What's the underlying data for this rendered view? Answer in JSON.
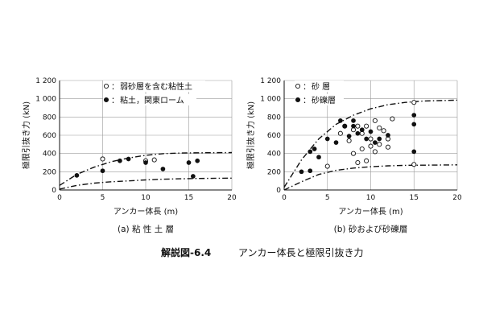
{
  "figure": {
    "caption_label": "解説図-6.4",
    "caption_text": "アンカー体長と極限引抜き力"
  },
  "chart_data": [
    {
      "type": "scatter",
      "subtitle": "(a) 粘 性 土 層",
      "xlabel": "アンカー体長 (m)",
      "ylabel": "極限引抜き力 (kN)",
      "xlim": [
        0,
        20
      ],
      "ylim": [
        0,
        1200
      ],
      "x_ticks": [
        0,
        5,
        10,
        15,
        20
      ],
      "y_ticks": [
        0,
        200,
        400,
        600,
        800,
        1000,
        1200
      ],
      "y_tick_labels": [
        "0",
        "200",
        "400",
        "600",
        "800",
        "1 000",
        "1 200"
      ],
      "grid": true,
      "legend_position": "top-right",
      "series": [
        {
          "name": "弱砂層を含む粘性土",
          "marker": "open-circle",
          "points": [
            [
              5,
              340
            ],
            [
              10,
              320
            ],
            [
              11,
              330
            ]
          ]
        },
        {
          "name": "粘土，関東ローム",
          "marker": "filled-circle",
          "points": [
            [
              2,
              160
            ],
            [
              5,
              210
            ],
            [
              7,
              320
            ],
            [
              8,
              340
            ],
            [
              10,
              300
            ],
            [
              12,
              230
            ],
            [
              15,
              300
            ],
            [
              15.5,
              150
            ],
            [
              16,
              320
            ]
          ]
        }
      ],
      "curves": [
        {
          "style": "dash-dot",
          "points": [
            [
              0,
              50
            ],
            [
              2,
              170
            ],
            [
              4,
              250
            ],
            [
              6,
              310
            ],
            [
              8,
              350
            ],
            [
              10,
              380
            ],
            [
              12,
              398
            ],
            [
              14,
              405
            ],
            [
              16,
              408
            ],
            [
              20,
              410
            ]
          ]
        },
        {
          "style": "dash-dot",
          "points": [
            [
              0,
              10
            ],
            [
              2,
              50
            ],
            [
              4,
              75
            ],
            [
              6,
              90
            ],
            [
              8,
              100
            ],
            [
              10,
              110
            ],
            [
              12,
              118
            ],
            [
              14,
              123
            ],
            [
              16,
              126
            ],
            [
              20,
              130
            ]
          ]
        }
      ]
    },
    {
      "type": "scatter",
      "subtitle": "(b) 砂および砂礫層",
      "xlabel": "アンカー体長 (m)",
      "ylabel": "極限引抜き力 (kN)",
      "xlim": [
        0,
        20
      ],
      "ylim": [
        0,
        1200
      ],
      "x_ticks": [
        0,
        5,
        10,
        15,
        20
      ],
      "y_ticks": [
        0,
        200,
        400,
        600,
        800,
        1000,
        1200
      ],
      "y_tick_labels": [
        "0",
        "200",
        "400",
        "600",
        "800",
        "1 000",
        "1 200"
      ],
      "grid": true,
      "legend_position": "top-left",
      "series": [
        {
          "name": "砂 層",
          "marker": "open-circle",
          "points": [
            [
              5,
              260
            ],
            [
              6.5,
              620
            ],
            [
              7,
              700
            ],
            [
              7.5,
              540
            ],
            [
              8,
              660
            ],
            [
              8.5,
              700
            ],
            [
              8.5,
              300
            ],
            [
              9,
              620
            ],
            [
              9,
              450
            ],
            [
              9.5,
              700
            ],
            [
              10,
              560
            ],
            [
              10,
              480
            ],
            [
              10.5,
              760
            ],
            [
              10.5,
              420
            ],
            [
              11,
              680
            ],
            [
              11,
              500
            ],
            [
              11.5,
              650
            ],
            [
              12,
              560
            ],
            [
              12,
              470
            ],
            [
              12.5,
              780
            ],
            [
              8,
              400
            ],
            [
              9.5,
              320
            ],
            [
              15,
              960
            ],
            [
              15,
              280
            ]
          ]
        },
        {
          "name": "砂礫層",
          "marker": "filled-circle",
          "points": [
            [
              2,
              200
            ],
            [
              3,
              420
            ],
            [
              3.5,
              450
            ],
            [
              3,
              210
            ],
            [
              4,
              360
            ],
            [
              5,
              560
            ],
            [
              6,
              520
            ],
            [
              6.5,
              760
            ],
            [
              7,
              700
            ],
            [
              7.5,
              590
            ],
            [
              8,
              700
            ],
            [
              8,
              760
            ],
            [
              8.5,
              620
            ],
            [
              9,
              660
            ],
            [
              9.5,
              560
            ],
            [
              10,
              640
            ],
            [
              10.5,
              520
            ],
            [
              11,
              560
            ],
            [
              12,
              600
            ],
            [
              15,
              820
            ],
            [
              15,
              720
            ],
            [
              15,
              420
            ]
          ]
        }
      ],
      "curves": [
        {
          "style": "dash-dot",
          "points": [
            [
              0,
              30
            ],
            [
              2,
              330
            ],
            [
              4,
              560
            ],
            [
              6,
              720
            ],
            [
              8,
              820
            ],
            [
              10,
              890
            ],
            [
              12,
              935
            ],
            [
              14,
              960
            ],
            [
              16,
              975
            ],
            [
              20,
              985
            ]
          ]
        },
        {
          "style": "dash-dot",
          "points": [
            [
              0,
              0
            ],
            [
              2,
              90
            ],
            [
              4,
              170
            ],
            [
              6,
              215
            ],
            [
              8,
              240
            ],
            [
              10,
              255
            ],
            [
              12,
              265
            ],
            [
              14,
              270
            ],
            [
              16,
              272
            ],
            [
              20,
              275
            ]
          ]
        }
      ]
    }
  ]
}
